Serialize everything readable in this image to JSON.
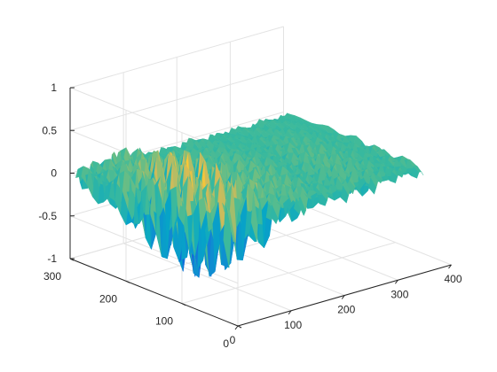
{
  "chart_data": {
    "type": "surface",
    "title": "",
    "xlabel": "",
    "ylabel": "",
    "zlabel": "",
    "xlim": [
      0,
      400
    ],
    "ylim": [
      0,
      300
    ],
    "zlim": [
      -1,
      1
    ],
    "grid": true,
    "box": "open",
    "colormap": "parula",
    "x_ticks": [
      "0",
      "100",
      "200",
      "300",
      "400"
    ],
    "y_ticks": [
      "0",
      "100",
      "200",
      "300"
    ],
    "z_ticks": [
      "-1",
      "-0.5",
      "0",
      "0.5",
      "1"
    ],
    "surface_summary": {
      "baseline_z": 0,
      "peak_z": 0.6,
      "trough_z": -0.9,
      "strong_oscillation_x_range": [
        0,
        120
      ],
      "moderate_oscillation_x_range": [
        120,
        400
      ]
    }
  }
}
